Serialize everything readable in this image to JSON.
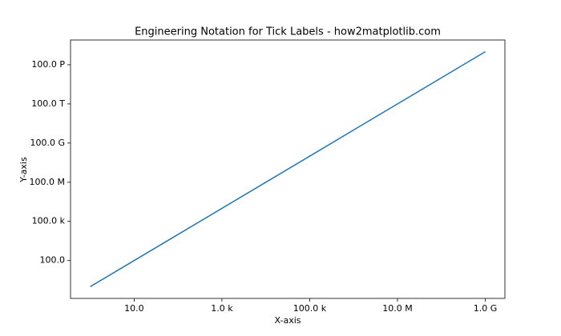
{
  "chart_data": {
    "type": "line",
    "title": "Engineering Notation for Tick Labels - how2matplotlib.com",
    "x_label": "X-axis",
    "y_label": "Y-axis",
    "x": [
      1,
      10,
      100,
      1000,
      10000,
      100000,
      1000000,
      10000000,
      100000000,
      1000000000
    ],
    "series": [
      {
        "color": "#1f77b4",
        "values": [
          1,
          100,
          10000,
          1000000,
          100000000,
          10000000000,
          1000000000000,
          100000000000000,
          10000000000000000,
          1000000000000000000
        ]
      }
    ],
    "xscale": "log",
    "yscale": "log",
    "grid": false,
    "xlim": [
      0.355,
      2800000000
    ],
    "ylim": [
      0.126,
      7900000000000000000
    ],
    "xticks": [
      {
        "value": 10,
        "label": "10.0"
      },
      {
        "value": 1000,
        "label": "1.0 k"
      },
      {
        "value": 100000,
        "label": "100.0 k"
      },
      {
        "value": 10000000,
        "label": "10.0 M"
      },
      {
        "value": 1000000000,
        "label": "1.0 G"
      }
    ],
    "yticks": [
      {
        "value": 100,
        "label": "100.0"
      },
      {
        "value": 100000,
        "label": "100.0 k"
      },
      {
        "value": 100000000,
        "label": "100.0 M"
      },
      {
        "value": 100000000000,
        "label": "100.0 G"
      },
      {
        "value": 100000000000000,
        "label": "100.0 T"
      },
      {
        "value": 100000000000000000,
        "label": "100.0 P"
      }
    ]
  }
}
